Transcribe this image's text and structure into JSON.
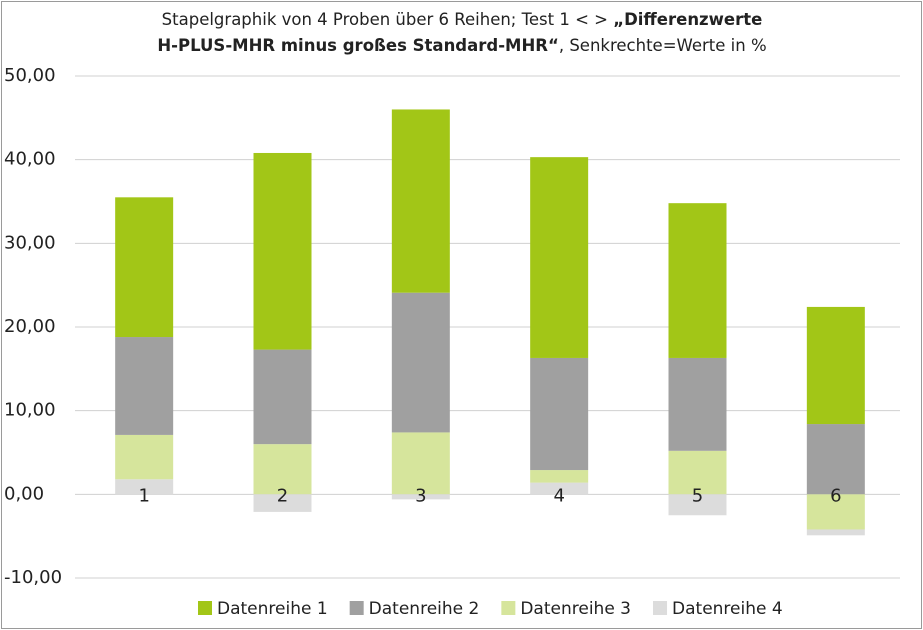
{
  "chart_data": {
    "type": "stacked_bar",
    "title": [
      "Stapelgraphik von 4 Proben über 6 Reihen; Test 1 < > ",
      "„Differenzwerte",
      "H-PLUS-MHR minus großes Standard-MHR“",
      ", Senkrechte=Werte in %"
    ],
    "categories": [
      "1",
      "2",
      "3",
      "4",
      "5",
      "6"
    ],
    "series": [
      {
        "name": "Datenreihe 1",
        "color": "#a2c617",
        "values": [
          16.7,
          23.5,
          21.9,
          24.0,
          18.5,
          14.0
        ]
      },
      {
        "name": "Datenreihe 2",
        "color": "#a0a0a0",
        "values": [
          11.7,
          11.3,
          16.7,
          13.4,
          11.1,
          8.4
        ]
      },
      {
        "name": "Datenreihe 3",
        "color": "#d6e59c",
        "values": [
          5.3,
          6.0,
          7.4,
          1.5,
          5.2,
          -4.2
        ]
      },
      {
        "name": "Datenreihe 4",
        "color": "#dcdcdc",
        "values": [
          1.8,
          -2.1,
          -0.6,
          1.4,
          -2.5,
          -0.7
        ]
      }
    ],
    "ylim": [
      -10,
      50
    ],
    "yticks": [
      {
        "value": -10,
        "label": "-10,00"
      },
      {
        "value": 0,
        "label": "0,00"
      },
      {
        "value": 10,
        "label": "10,00"
      },
      {
        "value": 20,
        "label": "20,00"
      },
      {
        "value": 30,
        "label": "30,00"
      },
      {
        "value": 40,
        "label": "40,00"
      },
      {
        "value": 50,
        "label": "50,00"
      }
    ],
    "grid": true,
    "legend": "bottom"
  }
}
